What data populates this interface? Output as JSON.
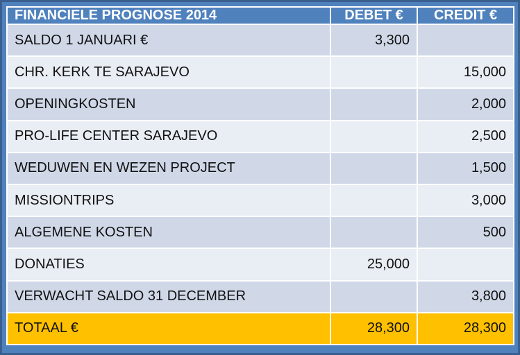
{
  "table": {
    "headers": [
      "FINANCIELE PROGNOSE 2014",
      "DEBET €",
      "CREDIT €"
    ],
    "rows": [
      {
        "label": "SALDO 1 JANUARI €",
        "debet": "3,300",
        "credit": ""
      },
      {
        "label": "CHR. KERK TE SARAJEVO",
        "debet": "",
        "credit": "15,000"
      },
      {
        "label": "OPENINGKOSTEN",
        "debet": "",
        "credit": "2,000"
      },
      {
        "label": "PRO-LIFE CENTER SARAJEVO",
        "debet": "",
        "credit": "2,500"
      },
      {
        "label": "WEDUWEN EN WEZEN PROJECT",
        "debet": "",
        "credit": "1,500"
      },
      {
        "label": "MISSIONTRIPS",
        "debet": "",
        "credit": "3,000"
      },
      {
        "label": "ALGEMENE KOSTEN",
        "debet": "",
        "credit": "500"
      },
      {
        "label": "DONATIES",
        "debet": "25,000",
        "credit": ""
      },
      {
        "label": "VERWACHT SALDO 31 DECEMBER",
        "debet": "",
        "credit": "3,800"
      }
    ],
    "total": {
      "label": "TOTAAL €",
      "debet": "28,300",
      "credit": "28,300"
    }
  },
  "colors": {
    "header": "#4f81bd",
    "row_odd": "#d0d8e8",
    "row_even": "#e9edf4",
    "total": "#ffc000"
  }
}
